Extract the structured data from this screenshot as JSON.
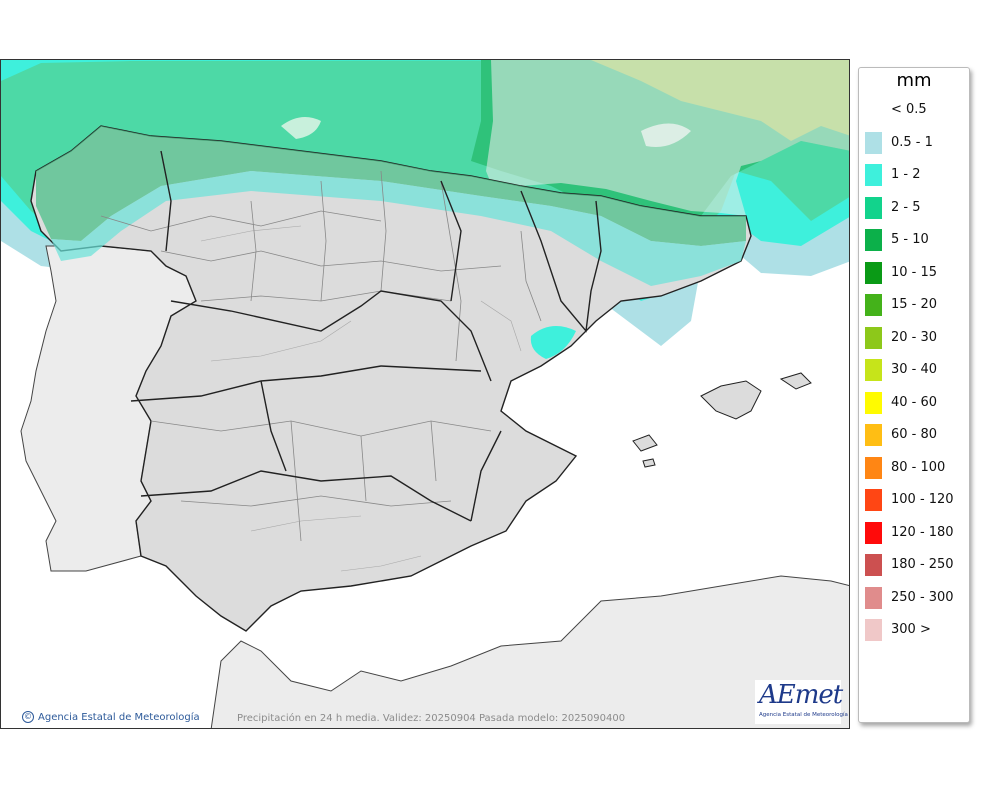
{
  "legend": {
    "unit": "mm",
    "items": [
      {
        "label": "< 0.5",
        "color": "#ffffff"
      },
      {
        "label": "0.5 - 1",
        "color": "#aee0e6"
      },
      {
        "label": "1 - 2",
        "color": "#3ef0dc"
      },
      {
        "label": "2 - 5",
        "color": "#12d38c"
      },
      {
        "label": "5 - 10",
        "color": "#0cb04a"
      },
      {
        "label": "10 - 15",
        "color": "#0a9a16"
      },
      {
        "label": "15 - 20",
        "color": "#44b21a"
      },
      {
        "label": "20 - 30",
        "color": "#8dc81a"
      },
      {
        "label": "30 - 40",
        "color": "#c6e41a"
      },
      {
        "label": "40 - 60",
        "color": "#fffb00"
      },
      {
        "label": "60 - 80",
        "color": "#ffbe14"
      },
      {
        "label": "80 - 100",
        "color": "#ff8614"
      },
      {
        "label": "100 - 120",
        "color": "#ff4614"
      },
      {
        "label": "120 - 180",
        "color": "#ff0a0a"
      },
      {
        "label": "180 - 250",
        "color": "#cc5050"
      },
      {
        "label": "250 - 300",
        "color": "#e08c8c"
      },
      {
        "label": "300 >",
        "color": "#f0c8c8"
      }
    ]
  },
  "footer": {
    "credit": "Agencia Estatal de Meteorología",
    "credit_icon": "copyright-icon",
    "caption": "Precipitación en 24 h media. Validez: 20250904 Pasada modelo: 2025090400"
  },
  "logo": {
    "text": "AEmet",
    "subtitle": "Agencia Estatal de Meteorología"
  },
  "map": {
    "sea_color": "#ffffff",
    "land_color": "#dcdcdc",
    "foreign_land_color": "#ececec",
    "border_color": "#333333",
    "region_line_color": "#888888"
  }
}
